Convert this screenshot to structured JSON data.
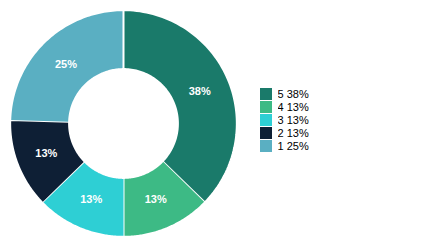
{
  "chart_data": {
    "type": "pie",
    "categories": [
      "5  38%",
      "4  13%",
      "3  13%",
      "2  13%",
      "1  25%"
    ],
    "values": [
      38,
      13,
      13,
      13,
      25
    ],
    "value_labels": [
      "38%",
      "13%",
      "13%",
      "13%",
      "25%"
    ],
    "colors": [
      "#1a7a6a",
      "#3dba85",
      "#2ecfd4",
      "#0e1f35",
      "#5aafc2"
    ],
    "data_labels": true,
    "legend": "right"
  }
}
